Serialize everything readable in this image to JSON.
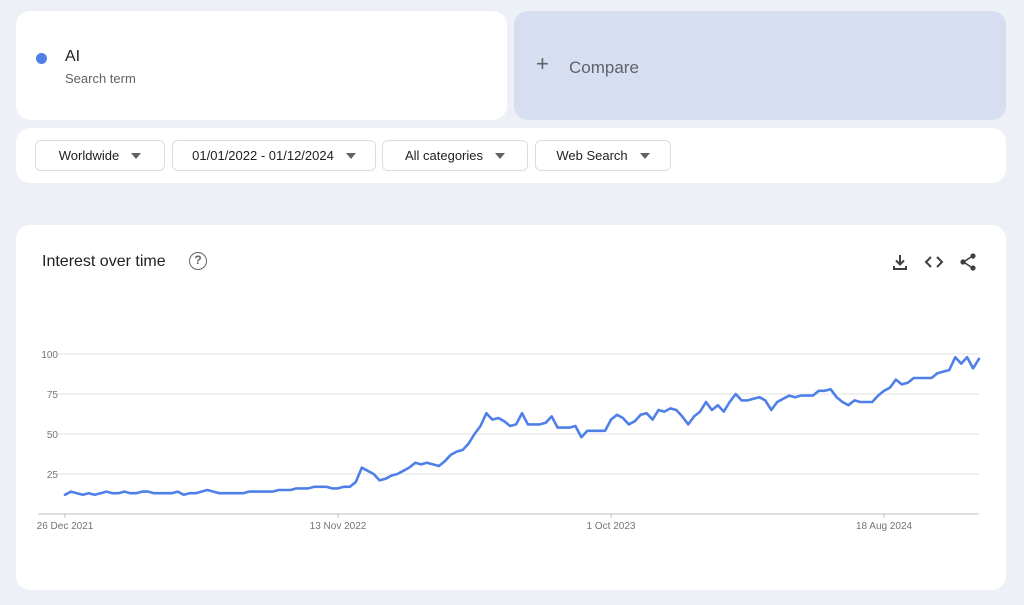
{
  "search_term": {
    "name": "AI",
    "subtitle": "Search term",
    "color": "#4f80e8"
  },
  "compare": {
    "plus": "+",
    "label": "Compare"
  },
  "filters": {
    "region": "Worldwide",
    "date_range": "01/01/2022 - 01/12/2024",
    "category": "All categories",
    "search_type": "Web Search"
  },
  "chart_card": {
    "title": "Interest over time",
    "help": "?",
    "icons": [
      "help-icon",
      "download-icon",
      "embed-icon",
      "share-icon"
    ]
  },
  "chart_data": {
    "type": "line",
    "title": "Interest over time",
    "xlabel": "",
    "ylabel": "",
    "ylim": [
      0,
      100
    ],
    "y_ticks": [
      25,
      50,
      75,
      100
    ],
    "x_tick_labels": [
      "26 Dec 2021",
      "13 Nov 2022",
      "1 Oct 2023",
      "18 Aug 2024"
    ],
    "x_tick_index": [
      0,
      46,
      92,
      138
    ],
    "grid": true,
    "legend": "none",
    "series": [
      {
        "color": "#4f80e8",
        "values": [
          12,
          14,
          13,
          12,
          13,
          12,
          13,
          14,
          13,
          13,
          14,
          13,
          13,
          14,
          14,
          13,
          13,
          13,
          13,
          14,
          12,
          13,
          13,
          14,
          15,
          14,
          13,
          13,
          13,
          13,
          13,
          14,
          14,
          14,
          14,
          14,
          15,
          15,
          15,
          16,
          16,
          16,
          17,
          17,
          17,
          16,
          16,
          17,
          17,
          20,
          29,
          27,
          25,
          21,
          22,
          24,
          25,
          27,
          29,
          32,
          31,
          32,
          31,
          30,
          33,
          37,
          39,
          40,
          44,
          50,
          55,
          63,
          59,
          60,
          58,
          55,
          56,
          63,
          56,
          56,
          56,
          57,
          61,
          54,
          54,
          54,
          55,
          48,
          52,
          52,
          52,
          52,
          59,
          62,
          60,
          56,
          58,
          62,
          63,
          59,
          65,
          64,
          66,
          65,
          61,
          56,
          61,
          64,
          70,
          65,
          68,
          64,
          70,
          75,
          71,
          71,
          72,
          73,
          71,
          65,
          70,
          72,
          74,
          73,
          74,
          74,
          74,
          77,
          77,
          78,
          73,
          70,
          68,
          71,
          70,
          70,
          70,
          74,
          77,
          79,
          84,
          81,
          82,
          85,
          85,
          85,
          85,
          88,
          89,
          90,
          98,
          94,
          98,
          91,
          97
        ]
      }
    ]
  }
}
